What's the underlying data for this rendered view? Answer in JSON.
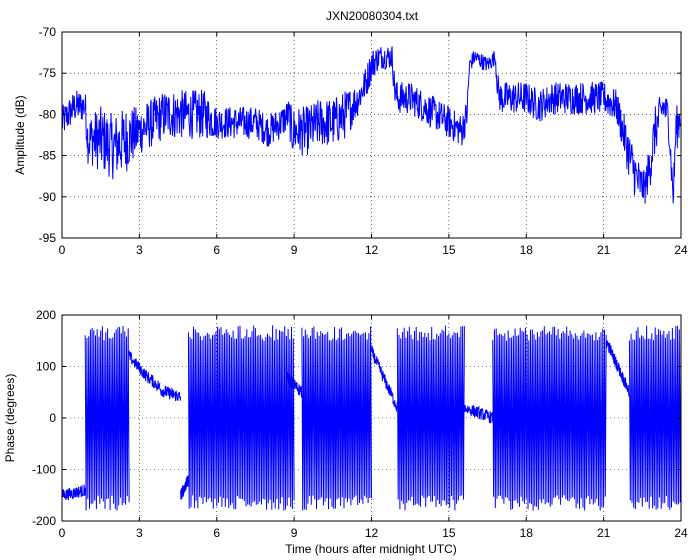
{
  "figure": {
    "title": "JXN20080304.txt"
  },
  "chart_data": [
    {
      "type": "line",
      "title": "JXN20080304.txt",
      "xlabel": "",
      "ylabel": "Amplitude (dB)",
      "xlim": [
        0,
        24
      ],
      "ylim": [
        -95,
        -70
      ],
      "xticks": [
        0,
        3,
        6,
        9,
        12,
        15,
        18,
        21,
        24
      ],
      "yticks": [
        -95,
        -90,
        -85,
        -80,
        -75,
        -70
      ],
      "grid": true,
      "color": "#0000ff",
      "series": [
        {
          "x": [
            0.0,
            0.5,
            0.9,
            1.0,
            1.5,
            2.0,
            2.5,
            3.0,
            3.5,
            4.0,
            4.5,
            5.0,
            5.5,
            6.0,
            6.5,
            7.0,
            7.5,
            8.0,
            8.5,
            8.8,
            8.9,
            9.0,
            9.5,
            10.0,
            10.5,
            11.0,
            11.5,
            11.8,
            12.0,
            12.3,
            12.6,
            12.8,
            12.9,
            13.0,
            13.5,
            14.0,
            14.5,
            15.0,
            15.5,
            15.7,
            15.8,
            16.0,
            16.5,
            16.8,
            16.9,
            17.0,
            17.5,
            18.0,
            18.5,
            19.0,
            19.5,
            20.0,
            20.5,
            21.0,
            21.5,
            22.0,
            22.3,
            22.6,
            22.8,
            23.0,
            23.3,
            23.5,
            23.7,
            23.8,
            24.0
          ],
          "y": [
            -81,
            -79,
            -79,
            -83,
            -83,
            -84,
            -83,
            -82,
            -81,
            -80,
            -80,
            -80,
            -80,
            -81,
            -81,
            -81,
            -81,
            -82,
            -81,
            -80,
            -82,
            -82,
            -82,
            -81,
            -81,
            -80,
            -78,
            -76,
            -74,
            -73,
            -73,
            -73,
            -77,
            -78,
            -78,
            -79,
            -80,
            -81,
            -82,
            -80,
            -74,
            -73,
            -74,
            -73,
            -77,
            -78,
            -78,
            -78,
            -79,
            -78,
            -78,
            -78,
            -78,
            -78,
            -79,
            -85,
            -88,
            -89,
            -86,
            -82,
            -79,
            -80,
            -90,
            -82,
            -80
          ],
          "spread": [
            2,
            2,
            2,
            3,
            4,
            4,
            4,
            3,
            3,
            3,
            3,
            3,
            3,
            2,
            2,
            2,
            2,
            2,
            2,
            2,
            3,
            3,
            3,
            3,
            3,
            3,
            2,
            2,
            2,
            1.5,
            1.5,
            1.5,
            2,
            2,
            2,
            2,
            2,
            2,
            2,
            2,
            1,
            1,
            1,
            1,
            2,
            2,
            2,
            2,
            2,
            2,
            2,
            2,
            2,
            2,
            2,
            3,
            3,
            2,
            3,
            3,
            2,
            2,
            2,
            3,
            2
          ]
        }
      ]
    },
    {
      "type": "scatter",
      "title": "",
      "xlabel": "Time (hours after midnight UTC)",
      "ylabel": "Phase (degrees)",
      "xlim": [
        0,
        24
      ],
      "ylim": [
        -200,
        200
      ],
      "xticks": [
        0,
        3,
        6,
        9,
        12,
        15,
        18,
        21,
        24
      ],
      "yticks": [
        -200,
        -100,
        0,
        100,
        200
      ],
      "grid": true,
      "color": "#0000ff",
      "segments": [
        {
          "x": [
            0.0,
            0.5,
            0.9
          ],
          "y": [
            -150,
            -145,
            -140
          ],
          "kind": "drift"
        },
        {
          "x": [
            0.9,
            2.6
          ],
          "kind": "wrap"
        },
        {
          "x": [
            2.6,
            3.3,
            3.8
          ],
          "y": [
            120,
            80,
            60
          ],
          "kind": "drift"
        },
        {
          "x": [
            3.8,
            4.6
          ],
          "y": [
            55,
            40
          ],
          "kind": "drift"
        },
        {
          "x": [
            4.6,
            4.9
          ],
          "y": [
            -150,
            -120
          ],
          "kind": "drift"
        },
        {
          "x": [
            4.9,
            9.0
          ],
          "kind": "wrap"
        },
        {
          "x": [
            8.7,
            9.3
          ],
          "y": [
            80,
            50
          ],
          "kind": "drift"
        },
        {
          "x": [
            9.3,
            12.0
          ],
          "kind": "wrap"
        },
        {
          "x": [
            12.0,
            13.0
          ],
          "y": [
            130,
            20
          ],
          "kind": "drift"
        },
        {
          "x": [
            13.0,
            15.6
          ],
          "kind": "wrap"
        },
        {
          "x": [
            15.6,
            16.7
          ],
          "y": [
            20,
            0
          ],
          "kind": "drift"
        },
        {
          "x": [
            16.7,
            21.1
          ],
          "kind": "wrap"
        },
        {
          "x": [
            21.1,
            22.0
          ],
          "y": [
            150,
            50
          ],
          "kind": "drift"
        },
        {
          "x": [
            22.0,
            24.0
          ],
          "kind": "wrap"
        }
      ]
    }
  ]
}
